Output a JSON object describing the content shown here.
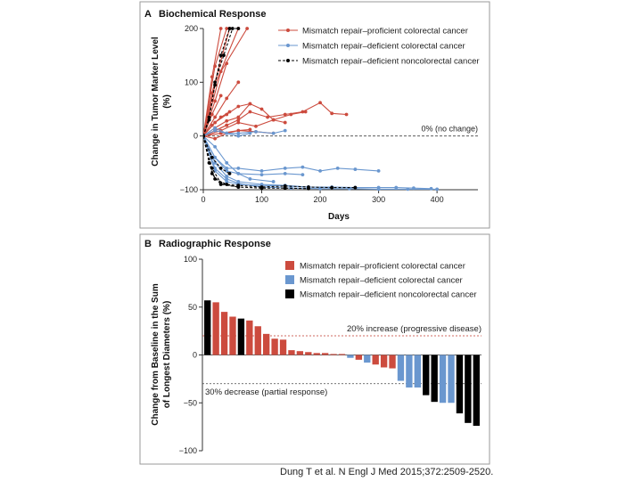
{
  "citation": "Dung T et al. N Engl J Med 2015;372:2509-2520.",
  "colors": {
    "proficient": "#cc4b3e",
    "deficient": "#6a97cf",
    "noncolorectal": "#000000",
    "frame": "#999999"
  },
  "chart_data": [
    {
      "type": "line",
      "panel_letter": "A",
      "title": "Biochemical Response",
      "xlabel": "Days",
      "ylabel_line1": "Change in Tumor Marker Level",
      "ylabel_line2": "(%)",
      "xlim": [
        0,
        470
      ],
      "ylim": [
        -100,
        200
      ],
      "xticks": [
        0,
        100,
        200,
        300,
        400
      ],
      "yticks": [
        -100,
        0,
        100,
        200
      ],
      "ytick_labels": [
        "−100",
        "0",
        "100",
        "200"
      ],
      "reference_line": {
        "y": 0,
        "label": "0% (no change)"
      },
      "legend": [
        "Mismatch repair–proficient colorectal cancer",
        "Mismatch repair–deficient colorectal cancer",
        "Mismatch repair–deficient noncolorectal cancer"
      ],
      "series": [
        {
          "group": "proficient",
          "x": [
            0,
            15,
            30
          ],
          "y": [
            0,
            110,
            200
          ]
        },
        {
          "group": "proficient",
          "x": [
            0,
            20,
            40
          ],
          "y": [
            0,
            130,
            200
          ]
        },
        {
          "group": "proficient",
          "x": [
            0,
            15,
            45
          ],
          "y": [
            0,
            80,
            200
          ]
        },
        {
          "group": "proficient",
          "x": [
            0,
            20,
            60
          ],
          "y": [
            0,
            95,
            200
          ]
        },
        {
          "group": "proficient",
          "x": [
            0,
            30,
            75
          ],
          "y": [
            0,
            120,
            200
          ]
        },
        {
          "group": "proficient",
          "x": [
            0,
            20,
            40
          ],
          "y": [
            0,
            65,
            135
          ]
        },
        {
          "group": "proficient",
          "x": [
            0,
            20,
            40,
            60
          ],
          "y": [
            0,
            35,
            70,
            100
          ]
        },
        {
          "group": "proficient",
          "x": [
            0,
            15,
            30
          ],
          "y": [
            0,
            40,
            75
          ]
        },
        {
          "group": "proficient",
          "x": [
            0,
            20,
            40,
            60,
            80
          ],
          "y": [
            0,
            25,
            40,
            55,
            60
          ]
        },
        {
          "group": "proficient",
          "x": [
            0,
            15,
            30,
            45
          ],
          "y": [
            0,
            20,
            35,
            45
          ]
        },
        {
          "group": "proficient",
          "x": [
            0,
            20,
            40,
            60,
            80,
            100,
            120,
            140
          ],
          "y": [
            0,
            15,
            28,
            35,
            60,
            50,
            30,
            25
          ]
        },
        {
          "group": "proficient",
          "x": [
            0,
            20,
            40,
            60,
            80,
            110,
            140,
            170,
            200,
            220,
            245
          ],
          "y": [
            0,
            10,
            20,
            30,
            45,
            35,
            40,
            45,
            62,
            42,
            40
          ]
        },
        {
          "group": "proficient",
          "x": [
            0,
            30,
            60,
            90,
            120,
            150,
            175
          ],
          "y": [
            0,
            10,
            25,
            18,
            30,
            40,
            45
          ]
        },
        {
          "group": "proficient",
          "x": [
            0,
            30,
            60,
            90,
            120
          ],
          "y": [
            0,
            5,
            10,
            8,
            5
          ]
        },
        {
          "group": "proficient",
          "x": [
            0,
            20,
            40,
            60,
            80
          ],
          "y": [
            0,
            -5,
            5,
            10,
            12
          ]
        },
        {
          "group": "proficient",
          "x": [
            0,
            20,
            40
          ],
          "y": [
            0,
            10,
            20
          ]
        },
        {
          "group": "deficient",
          "x": [
            0,
            20,
            40,
            60,
            90,
            120,
            140
          ],
          "y": [
            0,
            10,
            5,
            5,
            8,
            5,
            10
          ]
        },
        {
          "group": "deficient",
          "x": [
            0,
            20,
            40,
            60,
            80
          ],
          "y": [
            0,
            15,
            5,
            0,
            5
          ]
        },
        {
          "group": "deficient",
          "x": [
            0,
            20,
            40,
            60,
            100,
            140,
            170,
            200,
            230,
            260,
            300
          ],
          "y": [
            0,
            -40,
            -60,
            -60,
            -65,
            -60,
            -58,
            -65,
            -60,
            -62,
            -65
          ]
        },
        {
          "group": "deficient",
          "x": [
            0,
            20,
            40,
            60,
            100,
            140,
            180,
            220,
            260,
            300,
            330,
            360,
            390
          ],
          "y": [
            0,
            -50,
            -75,
            -85,
            -90,
            -92,
            -95,
            -95,
            -96,
            -96,
            -96,
            -97,
            -98
          ]
        },
        {
          "group": "deficient",
          "x": [
            0,
            20,
            40,
            60,
            100,
            150,
            200,
            250,
            300,
            350,
            400
          ],
          "y": [
            0,
            -60,
            -80,
            -88,
            -95,
            -97,
            -98,
            -98,
            -99,
            -99,
            -99
          ]
        },
        {
          "group": "deficient",
          "x": [
            0,
            20,
            40,
            60,
            100,
            140,
            180,
            220
          ],
          "y": [
            0,
            -65,
            -85,
            -90,
            -92,
            -93,
            -95,
            -96
          ]
        },
        {
          "group": "deficient",
          "x": [
            0,
            20,
            40,
            60,
            100,
            140,
            170
          ],
          "y": [
            0,
            -40,
            -65,
            -70,
            -72,
            -70,
            -72
          ]
        },
        {
          "group": "deficient",
          "x": [
            0,
            20,
            40,
            60,
            80,
            120
          ],
          "y": [
            0,
            -20,
            -50,
            -70,
            -80,
            -85
          ]
        },
        {
          "group": "noncolorectal",
          "x": [
            0,
            10,
            20,
            30,
            45,
            60
          ],
          "y": [
            0,
            35,
            95,
            150,
            200,
            200
          ]
        },
        {
          "group": "noncolorectal",
          "x": [
            0,
            10,
            20,
            35,
            50
          ],
          "y": [
            0,
            30,
            100,
            150,
            200
          ]
        },
        {
          "group": "noncolorectal",
          "x": [
            0,
            15,
            30,
            45
          ],
          "y": [
            0,
            -40,
            -60,
            -70
          ]
        },
        {
          "group": "noncolorectal",
          "x": [
            0,
            10,
            20,
            40,
            60,
            100,
            140,
            180,
            220,
            260
          ],
          "y": [
            0,
            -50,
            -80,
            -90,
            -92,
            -95,
            -93,
            -95,
            -96,
            -96
          ]
        },
        {
          "group": "noncolorectal",
          "x": [
            0,
            15,
            30,
            60,
            100,
            140,
            180
          ],
          "y": [
            0,
            -60,
            -88,
            -95,
            -97,
            -97,
            -98
          ]
        },
        {
          "group": "noncolorectal",
          "x": [
            0,
            15,
            30,
            60
          ],
          "y": [
            0,
            -70,
            -90,
            -95
          ]
        }
      ]
    },
    {
      "type": "bar",
      "panel_letter": "B",
      "title": "Radiographic Response",
      "ylabel_line1": "Change from Baseline in the Sum",
      "ylabel_line2": "of Longest Diameters (%)",
      "ylim": [
        -100,
        100
      ],
      "yticks": [
        -100,
        -50,
        0,
        50,
        100
      ],
      "ytick_labels": [
        "−100",
        "−50",
        "0",
        "50",
        "100"
      ],
      "reference_lines": [
        {
          "y": 20,
          "label": "20% increase (progressive disease)"
        },
        {
          "y": -30,
          "label": "30% decrease (partial response)"
        }
      ],
      "legend": [
        "Mismatch repair–proficient colorectal cancer",
        "Mismatch repair–deficient colorectal cancer",
        "Mismatch repair–deficient noncolorectal cancer"
      ],
      "values": [
        57,
        55,
        45,
        40,
        38,
        36,
        30,
        22,
        17,
        16,
        5,
        4,
        3,
        2,
        2,
        1,
        1,
        -3,
        -5,
        -8,
        -10,
        -13,
        -14,
        -27,
        -34,
        -34,
        -42,
        -49,
        -50,
        -50,
        -61,
        -71,
        -74
      ],
      "groups": [
        "noncolorectal",
        "proficient",
        "proficient",
        "proficient",
        "noncolorectal",
        "proficient",
        "proficient",
        "proficient",
        "proficient",
        "proficient",
        "proficient",
        "proficient",
        "proficient",
        "proficient",
        "proficient",
        "proficient",
        "proficient",
        "deficient",
        "proficient",
        "deficient",
        "proficient",
        "proficient",
        "proficient",
        "deficient",
        "deficient",
        "deficient",
        "noncolorectal",
        "noncolorectal",
        "deficient",
        "deficient",
        "noncolorectal",
        "noncolorectal",
        "noncolorectal"
      ]
    }
  ]
}
